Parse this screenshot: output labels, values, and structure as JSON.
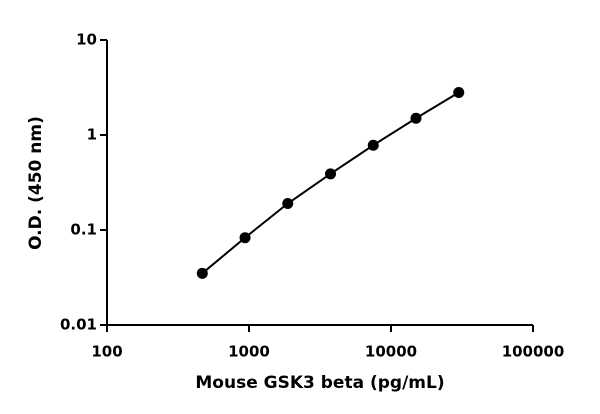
{
  "chart_data": {
    "type": "scatter",
    "log_x": true,
    "log_y": true,
    "x_label": "Mouse GSK3 beta (pg/mL)",
    "y_label": "O.D. (450 nm)",
    "x": [
      469,
      938,
      1875,
      3750,
      7500,
      15000,
      30000
    ],
    "series": [
      {
        "color": "#000000",
        "values": [
          0.035,
          0.083,
          0.19,
          0.39,
          0.78,
          1.5,
          2.8
        ]
      }
    ],
    "xlim": [
      100,
      100000
    ],
    "xticks": [
      100,
      1000,
      10000,
      100000
    ],
    "ylim": [
      0.01,
      10
    ],
    "yticks": [
      0.01,
      0.1,
      1,
      10
    ]
  }
}
